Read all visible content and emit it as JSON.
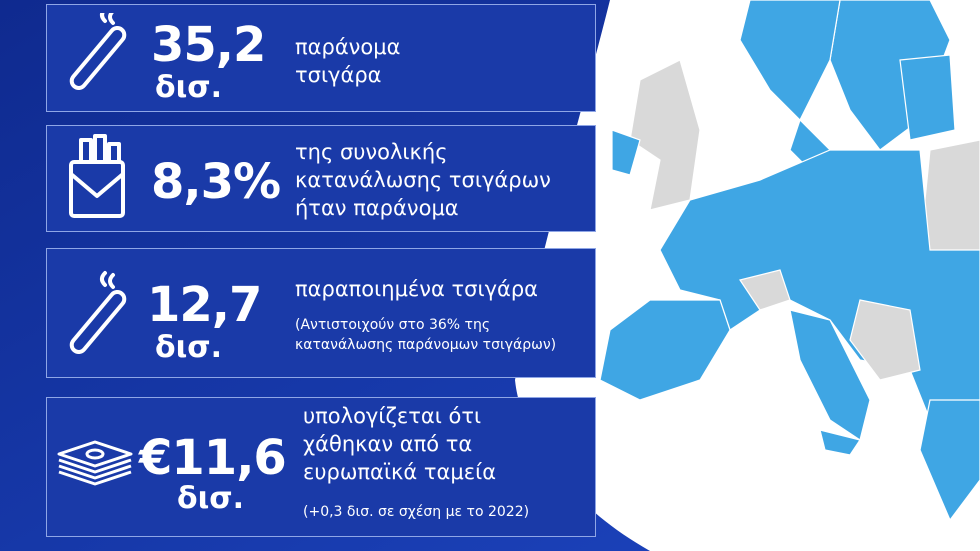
{
  "cards": [
    {
      "value": "35,2",
      "unit": "δισ.",
      "lines": [
        "παράνομα",
        "τσιγάρα"
      ]
    },
    {
      "value": "8,3%",
      "lines": [
        "της συνολικής",
        "κατανάλωσης τσιγάρων",
        "ήταν παράνομα"
      ]
    },
    {
      "value": "12,7",
      "unit": "δισ.",
      "lines": [
        "παραποιημένα τσιγάρα"
      ],
      "note": [
        "(Αντιστοιχούν στο 36% της",
        "κατανάλωσης παράνομων τσιγάρων)"
      ]
    },
    {
      "value": "€11,6",
      "unit": "δισ.",
      "lines": [
        "υπολογίζεται ότι",
        "χάθηκαν από τα",
        "ευρωπαϊκά ταμεία"
      ],
      "note": [
        "(+0,3 δισ. σε σχέση με το 2022)"
      ]
    }
  ]
}
